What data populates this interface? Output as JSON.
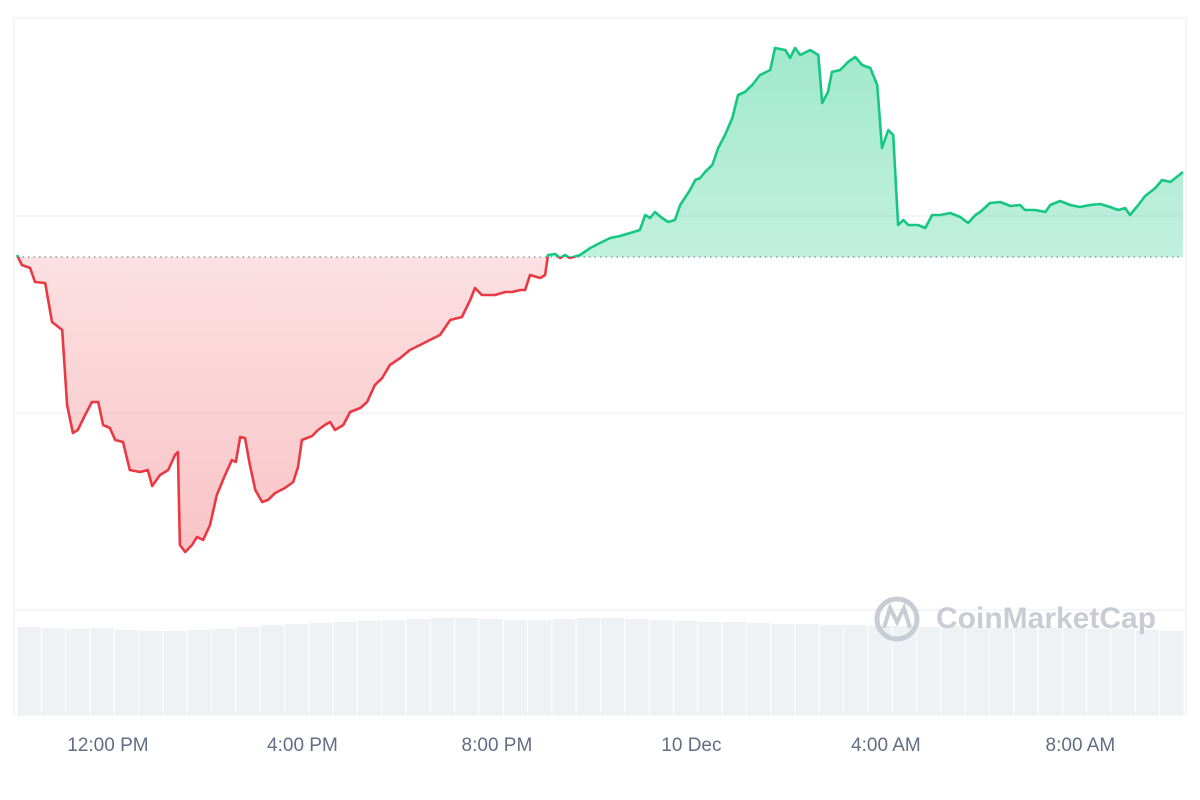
{
  "chart_data": {
    "type": "line",
    "watermark": "CoinMarketCap",
    "color_up": "#16c784",
    "color_down": "#ea3943",
    "volume_color": "#eff2f5",
    "reference_value": 353,
    "xlim": [
      10.13,
      34.11
    ],
    "xticks": [
      {
        "value": 12,
        "label": "12:00 PM"
      },
      {
        "value": 16,
        "label": "4:00 PM"
      },
      {
        "value": 20,
        "label": "8:00 PM"
      },
      {
        "value": 24,
        "label": "10 Dec"
      },
      {
        "value": 28,
        "label": "4:00 AM"
      },
      {
        "value": 32,
        "label": "8:00 AM"
      }
    ],
    "ylim": [
      0,
      592
    ],
    "yticks": [
      0,
      197,
      394
    ],
    "grid": true,
    "y2lim": [
      0,
      100
    ],
    "x": [
      10.13,
      10.23,
      10.4,
      10.5,
      10.71,
      10.85,
      11.06,
      11.16,
      11.28,
      11.38,
      11.53,
      11.67,
      11.8,
      11.9,
      12.04,
      12.15,
      12.31,
      12.45,
      12.66,
      12.82,
      12.91,
      13.07,
      13.24,
      13.38,
      13.44,
      13.48,
      13.59,
      13.73,
      13.83,
      13.96,
      14.1,
      14.24,
      14.41,
      14.55,
      14.63,
      14.72,
      14.82,
      14.92,
      15.03,
      15.17,
      15.29,
      15.44,
      15.64,
      15.81,
      15.91,
      15.99,
      16.2,
      16.32,
      16.46,
      16.57,
      16.67,
      16.84,
      16.98,
      17.19,
      17.33,
      17.49,
      17.64,
      17.8,
      18.01,
      18.21,
      18.42,
      18.62,
      18.83,
      19.04,
      19.28,
      19.45,
      19.55,
      19.69,
      19.96,
      20.17,
      20.31,
      20.48,
      20.58,
      20.68,
      20.89,
      20.99,
      21.05,
      21.2,
      21.3,
      21.4,
      21.5,
      21.71,
      21.92,
      22.12,
      22.33,
      22.53,
      22.74,
      22.94,
      23.05,
      23.15,
      23.25,
      23.4,
      23.52,
      23.66,
      23.77,
      23.97,
      24.08,
      24.18,
      24.28,
      24.43,
      24.55,
      24.69,
      24.84,
      24.96,
      25.1,
      25.25,
      25.41,
      25.62,
      25.72,
      25.93,
      26.03,
      26.13,
      26.24,
      26.44,
      26.61,
      26.69,
      26.81,
      26.89,
      27.06,
      27.22,
      27.37,
      27.51,
      27.68,
      27.82,
      27.92,
      28.05,
      28.15,
      28.25,
      28.36,
      28.46,
      28.66,
      28.81,
      28.95,
      29.12,
      29.32,
      29.53,
      29.69,
      29.84,
      29.94,
      30.14,
      30.35,
      30.56,
      30.76,
      30.86,
      31.07,
      31.28,
      31.38,
      31.58,
      31.79,
      31.99,
      32.2,
      32.41,
      32.61,
      32.78,
      32.92,
      33.02,
      33.19,
      33.33,
      33.54,
      33.68,
      33.85,
      34.11
    ],
    "series": [
      {
        "values": [
          355,
          345,
          342,
          328,
          327,
          288,
          280,
          205,
          177,
          180,
          195,
          208,
          208,
          185,
          182,
          170,
          168,
          140,
          138,
          140,
          124,
          135,
          140,
          155,
          158,
          65,
          58,
          65,
          73,
          70,
          85,
          115,
          135,
          150,
          148,
          173,
          172,
          145,
          120,
          108,
          110,
          117,
          122,
          128,
          143,
          170,
          174,
          180,
          185,
          188,
          180,
          185,
          198,
          202,
          208,
          225,
          232,
          245,
          252,
          260,
          265,
          270,
          275,
          290,
          293,
          310,
          322,
          315,
          315,
          318,
          318,
          320,
          320,
          335,
          332,
          335,
          355,
          356,
          352,
          355,
          352,
          355,
          362,
          367,
          372,
          374,
          377,
          380,
          395,
          392,
          398,
          392,
          388,
          390,
          405,
          420,
          430,
          432,
          438,
          445,
          462,
          475,
          492,
          515,
          518,
          525,
          535,
          540,
          562,
          560,
          552,
          562,
          555,
          560,
          555,
          507,
          518,
          538,
          540,
          548,
          553,
          545,
          542,
          525,
          462,
          480,
          475,
          385,
          390,
          385,
          385,
          382,
          395,
          395,
          397,
          393,
          387,
          395,
          398,
          407,
          408,
          404,
          405,
          400,
          400,
          398,
          405,
          409,
          405,
          403,
          405,
          406,
          403,
          400,
          402,
          395,
          405,
          414,
          422,
          430,
          428,
          438
        ]
      },
      {
        "type": "bar",
        "axis": "y2",
        "x": [
          10.38,
          10.88,
          11.38,
          11.88,
          12.38,
          12.88,
          13.38,
          13.88,
          14.38,
          14.88,
          15.38,
          15.88,
          16.38,
          16.88,
          17.38,
          17.88,
          18.38,
          18.88,
          19.38,
          19.88,
          20.38,
          20.88,
          21.38,
          21.88,
          22.38,
          22.88,
          23.38,
          23.88,
          24.38,
          24.88,
          25.38,
          25.88,
          26.38,
          26.88,
          27.38,
          27.88,
          28.38,
          28.88,
          29.38,
          29.88,
          30.38,
          30.88,
          31.38,
          31.88,
          32.38,
          32.88,
          33.38,
          33.88
        ],
        "values": [
          88,
          87,
          86,
          87,
          85,
          84,
          84,
          85,
          86,
          88,
          90,
          91,
          92,
          93,
          94,
          95,
          96,
          97,
          97,
          96,
          95,
          95,
          96,
          97,
          97,
          96,
          95,
          94,
          93,
          93,
          92,
          91,
          91,
          90,
          90,
          89,
          89,
          88,
          89,
          88,
          87,
          88,
          88,
          87,
          86,
          86,
          85,
          84
        ]
      }
    ]
  }
}
